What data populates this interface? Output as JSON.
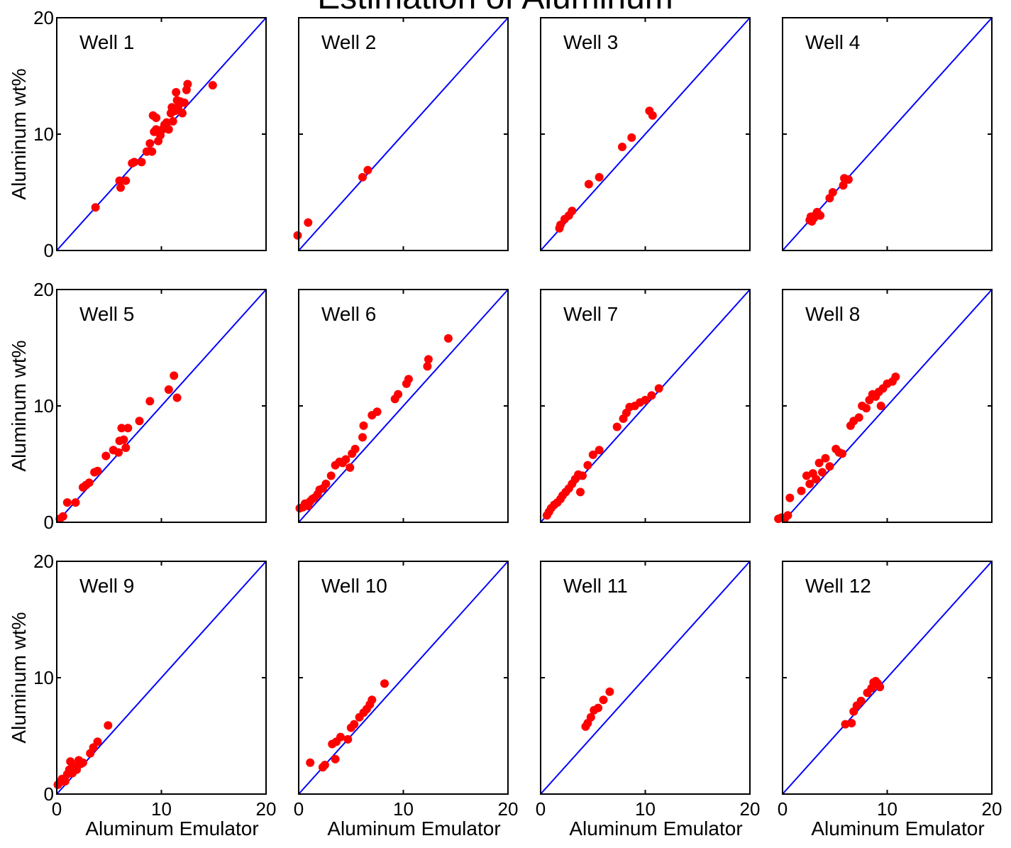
{
  "title": "Estimation of Aluminum",
  "colors": {
    "points": "#ff0000",
    "reference_line": "#0000ff",
    "axes": "#000000"
  },
  "chart_data": [
    {
      "type": "scatter",
      "panel_label": "Well 1",
      "xlim": [
        0,
        20
      ],
      "ylim": [
        0,
        20
      ],
      "xticks": [],
      "yticks": [
        "0",
        "10",
        "20"
      ],
      "xlabel": "",
      "ylabel": "Aluminum wt%",
      "reference_line": "y = x",
      "points": [
        [
          3.7,
          3.7
        ],
        [
          6.0,
          6.0
        ],
        [
          6.1,
          5.4
        ],
        [
          6.6,
          6.0
        ],
        [
          7.2,
          7.5
        ],
        [
          7.4,
          7.6
        ],
        [
          8.1,
          7.6
        ],
        [
          8.6,
          8.5
        ],
        [
          8.9,
          9.2
        ],
        [
          9.1,
          8.5
        ],
        [
          9.2,
          11.6
        ],
        [
          9.3,
          10.2
        ],
        [
          9.5,
          10.4
        ],
        [
          9.5,
          11.4
        ],
        [
          9.7,
          9.4
        ],
        [
          9.9,
          9.9
        ],
        [
          10.1,
          10.4
        ],
        [
          10.3,
          10.8
        ],
        [
          10.5,
          11.0
        ],
        [
          10.7,
          10.4
        ],
        [
          10.9,
          11.8
        ],
        [
          11.0,
          12.3
        ],
        [
          11.1,
          11.1
        ],
        [
          11.3,
          12.0
        ],
        [
          11.4,
          13.6
        ],
        [
          11.5,
          12.9
        ],
        [
          11.6,
          12.3
        ],
        [
          11.8,
          12.8
        ],
        [
          12.0,
          11.8
        ],
        [
          12.2,
          12.7
        ],
        [
          12.4,
          13.8
        ],
        [
          12.5,
          14.3
        ],
        [
          14.9,
          14.2
        ]
      ]
    },
    {
      "type": "scatter",
      "panel_label": "Well 2",
      "xlim": [
        0,
        20
      ],
      "ylim": [
        0,
        20
      ],
      "xticks": [],
      "yticks": [],
      "xlabel": "",
      "ylabel": "",
      "reference_line": "y = x",
      "points": [
        [
          -0.1,
          1.3
        ],
        [
          0.9,
          2.4
        ],
        [
          6.1,
          6.3
        ],
        [
          6.6,
          6.9
        ]
      ]
    },
    {
      "type": "scatter",
      "panel_label": "Well 3",
      "xlim": [
        0,
        20
      ],
      "ylim": [
        0,
        20
      ],
      "xticks": [],
      "yticks": [],
      "xlabel": "",
      "ylabel": "",
      "reference_line": "y = x",
      "points": [
        [
          1.8,
          1.9
        ],
        [
          1.9,
          2.2
        ],
        [
          2.3,
          2.7
        ],
        [
          2.7,
          3.0
        ],
        [
          3.0,
          3.4
        ],
        [
          4.6,
          5.7
        ],
        [
          5.6,
          6.3
        ],
        [
          7.8,
          8.9
        ],
        [
          8.7,
          9.7
        ],
        [
          10.4,
          12.0
        ],
        [
          10.7,
          11.6
        ]
      ]
    },
    {
      "type": "scatter",
      "panel_label": "Well 4",
      "xlim": [
        0,
        20
      ],
      "ylim": [
        0,
        20
      ],
      "xticks": [],
      "yticks": [],
      "xlabel": "",
      "ylabel": "",
      "reference_line": "y = x",
      "points": [
        [
          2.6,
          2.6
        ],
        [
          2.7,
          2.9
        ],
        [
          2.8,
          2.5
        ],
        [
          3.0,
          2.8
        ],
        [
          3.2,
          3.1
        ],
        [
          3.3,
          3.3
        ],
        [
          3.6,
          3.0
        ],
        [
          4.5,
          4.5
        ],
        [
          4.8,
          5.0
        ],
        [
          5.8,
          5.6
        ],
        [
          5.9,
          6.2
        ],
        [
          6.3,
          6.1
        ]
      ]
    },
    {
      "type": "scatter",
      "panel_label": "Well 5",
      "xlim": [
        0,
        20
      ],
      "ylim": [
        0,
        20
      ],
      "xticks": [],
      "yticks": [
        "0",
        "10",
        "20"
      ],
      "xlabel": "",
      "ylabel": "Aluminum wt%",
      "reference_line": "y = x",
      "points": [
        [
          0.3,
          0.3
        ],
        [
          0.6,
          0.5
        ],
        [
          1.0,
          1.7
        ],
        [
          1.8,
          1.7
        ],
        [
          2.5,
          3.0
        ],
        [
          2.8,
          3.2
        ],
        [
          3.1,
          3.4
        ],
        [
          3.6,
          4.3
        ],
        [
          3.9,
          4.4
        ],
        [
          4.7,
          5.7
        ],
        [
          5.4,
          6.2
        ],
        [
          5.9,
          6.0
        ],
        [
          6.0,
          7.0
        ],
        [
          6.2,
          8.1
        ],
        [
          6.4,
          7.1
        ],
        [
          6.6,
          6.4
        ],
        [
          6.8,
          8.1
        ],
        [
          7.9,
          8.7
        ],
        [
          8.9,
          10.4
        ],
        [
          10.7,
          11.4
        ],
        [
          11.2,
          12.6
        ],
        [
          11.5,
          10.7
        ]
      ]
    },
    {
      "type": "scatter",
      "panel_label": "Well 6",
      "xlim": [
        0,
        20
      ],
      "ylim": [
        0,
        20
      ],
      "xticks": [],
      "yticks": [],
      "xlabel": "",
      "ylabel": "",
      "reference_line": "y = x",
      "points": [
        [
          0.1,
          1.2
        ],
        [
          0.4,
          1.3
        ],
        [
          0.6,
          1.6
        ],
        [
          0.9,
          1.4
        ],
        [
          1.1,
          1.8
        ],
        [
          1.3,
          2.0
        ],
        [
          1.5,
          2.1
        ],
        [
          1.8,
          2.4
        ],
        [
          2.0,
          2.8
        ],
        [
          2.3,
          2.9
        ],
        [
          2.6,
          3.3
        ],
        [
          3.1,
          4.0
        ],
        [
          3.5,
          4.9
        ],
        [
          3.9,
          5.2
        ],
        [
          4.2,
          5.1
        ],
        [
          4.5,
          5.4
        ],
        [
          4.9,
          4.7
        ],
        [
          5.1,
          5.9
        ],
        [
          5.4,
          6.3
        ],
        [
          6.1,
          7.3
        ],
        [
          6.2,
          8.3
        ],
        [
          7.0,
          9.2
        ],
        [
          7.5,
          9.5
        ],
        [
          9.2,
          10.6
        ],
        [
          9.5,
          11.0
        ],
        [
          10.3,
          11.9
        ],
        [
          10.5,
          12.3
        ],
        [
          12.3,
          13.4
        ],
        [
          12.4,
          14.0
        ],
        [
          14.3,
          15.8
        ]
      ]
    },
    {
      "type": "scatter",
      "panel_label": "Well 7",
      "xlim": [
        0,
        20
      ],
      "ylim": [
        0,
        20
      ],
      "xticks": [],
      "yticks": [],
      "xlabel": "",
      "ylabel": "",
      "reference_line": "y = x",
      "points": [
        [
          0.6,
          0.6
        ],
        [
          0.8,
          0.9
        ],
        [
          1.0,
          1.2
        ],
        [
          1.3,
          1.5
        ],
        [
          1.6,
          1.7
        ],
        [
          1.9,
          2.0
        ],
        [
          2.1,
          2.3
        ],
        [
          2.4,
          2.6
        ],
        [
          2.7,
          2.9
        ],
        [
          3.0,
          3.3
        ],
        [
          3.3,
          3.7
        ],
        [
          3.6,
          4.1
        ],
        [
          3.8,
          2.6
        ],
        [
          4.0,
          4.0
        ],
        [
          4.5,
          4.9
        ],
        [
          5.0,
          5.8
        ],
        [
          5.6,
          6.2
        ],
        [
          7.3,
          8.2
        ],
        [
          7.9,
          8.9
        ],
        [
          8.2,
          9.4
        ],
        [
          8.5,
          9.9
        ],
        [
          9.0,
          10.0
        ],
        [
          9.5,
          10.3
        ],
        [
          10.0,
          10.5
        ],
        [
          10.6,
          10.9
        ],
        [
          11.3,
          11.5
        ]
      ]
    },
    {
      "type": "scatter",
      "panel_label": "Well 8",
      "xlim": [
        0,
        20
      ],
      "ylim": [
        0,
        20
      ],
      "xticks": [],
      "yticks": [],
      "xlabel": "",
      "ylabel": "",
      "reference_line": "y = x",
      "points": [
        [
          -0.4,
          0.3
        ],
        [
          -0.1,
          0.4
        ],
        [
          0.2,
          0.3
        ],
        [
          0.5,
          0.6
        ],
        [
          0.7,
          2.1
        ],
        [
          1.8,
          2.7
        ],
        [
          2.3,
          4.0
        ],
        [
          2.6,
          3.3
        ],
        [
          2.9,
          4.2
        ],
        [
          3.2,
          3.7
        ],
        [
          3.5,
          5.1
        ],
        [
          3.8,
          4.3
        ],
        [
          4.1,
          5.5
        ],
        [
          4.5,
          4.8
        ],
        [
          5.1,
          6.3
        ],
        [
          5.4,
          6.0
        ],
        [
          5.7,
          5.9
        ],
        [
          6.5,
          8.3
        ],
        [
          6.8,
          8.7
        ],
        [
          7.3,
          9.0
        ],
        [
          7.6,
          10.0
        ],
        [
          8.0,
          9.8
        ],
        [
          8.3,
          10.5
        ],
        [
          8.6,
          11.0
        ],
        [
          8.9,
          10.8
        ],
        [
          9.2,
          11.2
        ],
        [
          9.4,
          10.0
        ],
        [
          9.6,
          11.5
        ],
        [
          10.0,
          11.9
        ],
        [
          10.5,
          12.1
        ],
        [
          10.8,
          12.5
        ]
      ]
    },
    {
      "type": "scatter",
      "panel_label": "Well 9",
      "xlim": [
        0,
        20
      ],
      "ylim": [
        0,
        20
      ],
      "xticks": [
        "0",
        "10",
        "20"
      ],
      "yticks": [
        "0",
        "10",
        "20"
      ],
      "xlabel": "Aluminum Emulator",
      "ylabel": "Aluminum wt%",
      "reference_line": "y = x",
      "points": [
        [
          0.1,
          0.8
        ],
        [
          0.3,
          1.0
        ],
        [
          0.5,
          1.3
        ],
        [
          0.8,
          1.1
        ],
        [
          1.0,
          1.7
        ],
        [
          1.2,
          2.1
        ],
        [
          1.3,
          2.8
        ],
        [
          1.5,
          1.8
        ],
        [
          1.7,
          2.4
        ],
        [
          1.9,
          2.1
        ],
        [
          2.1,
          2.9
        ],
        [
          2.3,
          2.6
        ],
        [
          2.5,
          2.7
        ],
        [
          3.2,
          3.5
        ],
        [
          3.5,
          4.0
        ],
        [
          3.9,
          4.5
        ],
        [
          4.9,
          5.9
        ]
      ]
    },
    {
      "type": "scatter",
      "panel_label": "Well 10",
      "xlim": [
        0,
        20
      ],
      "ylim": [
        0,
        20
      ],
      "xticks": [
        "0",
        "10",
        "20"
      ],
      "yticks": [],
      "xlabel": "Aluminum Emulator",
      "ylabel": "",
      "reference_line": "y = x",
      "points": [
        [
          1.1,
          2.7
        ],
        [
          2.3,
          2.3
        ],
        [
          2.5,
          2.5
        ],
        [
          3.2,
          4.3
        ],
        [
          3.5,
          3.0
        ],
        [
          3.6,
          4.5
        ],
        [
          4.0,
          4.9
        ],
        [
          4.7,
          4.7
        ],
        [
          5.0,
          5.7
        ],
        [
          5.3,
          6.0
        ],
        [
          5.8,
          6.6
        ],
        [
          6.2,
          7.0
        ],
        [
          6.5,
          7.3
        ],
        [
          6.8,
          7.7
        ],
        [
          7.0,
          8.1
        ],
        [
          8.2,
          9.5
        ]
      ]
    },
    {
      "type": "scatter",
      "panel_label": "Well 11",
      "xlim": [
        0,
        20
      ],
      "ylim": [
        0,
        20
      ],
      "xticks": [
        "0",
        "10",
        "20"
      ],
      "yticks": [],
      "xlabel": "Aluminum Emulator",
      "ylabel": "",
      "reference_line": "y = x",
      "points": [
        [
          4.3,
          5.8
        ],
        [
          4.5,
          6.1
        ],
        [
          4.8,
          6.6
        ],
        [
          5.1,
          7.2
        ],
        [
          5.5,
          7.4
        ],
        [
          6.0,
          8.1
        ],
        [
          6.6,
          8.8
        ]
      ]
    },
    {
      "type": "scatter",
      "panel_label": "Well 12",
      "xlim": [
        0,
        20
      ],
      "ylim": [
        0,
        20
      ],
      "xticks": [
        "0",
        "10",
        "20"
      ],
      "yticks": [],
      "xlabel": "Aluminum Emulator",
      "ylabel": "",
      "reference_line": "y = x",
      "points": [
        [
          6.0,
          6.0
        ],
        [
          6.6,
          6.1
        ],
        [
          6.8,
          7.1
        ],
        [
          7.1,
          7.6
        ],
        [
          7.5,
          8.0
        ],
        [
          8.1,
          8.7
        ],
        [
          8.5,
          9.1
        ],
        [
          8.7,
          9.6
        ],
        [
          8.9,
          9.7
        ],
        [
          9.1,
          9.5
        ],
        [
          9.3,
          9.2
        ]
      ]
    }
  ]
}
